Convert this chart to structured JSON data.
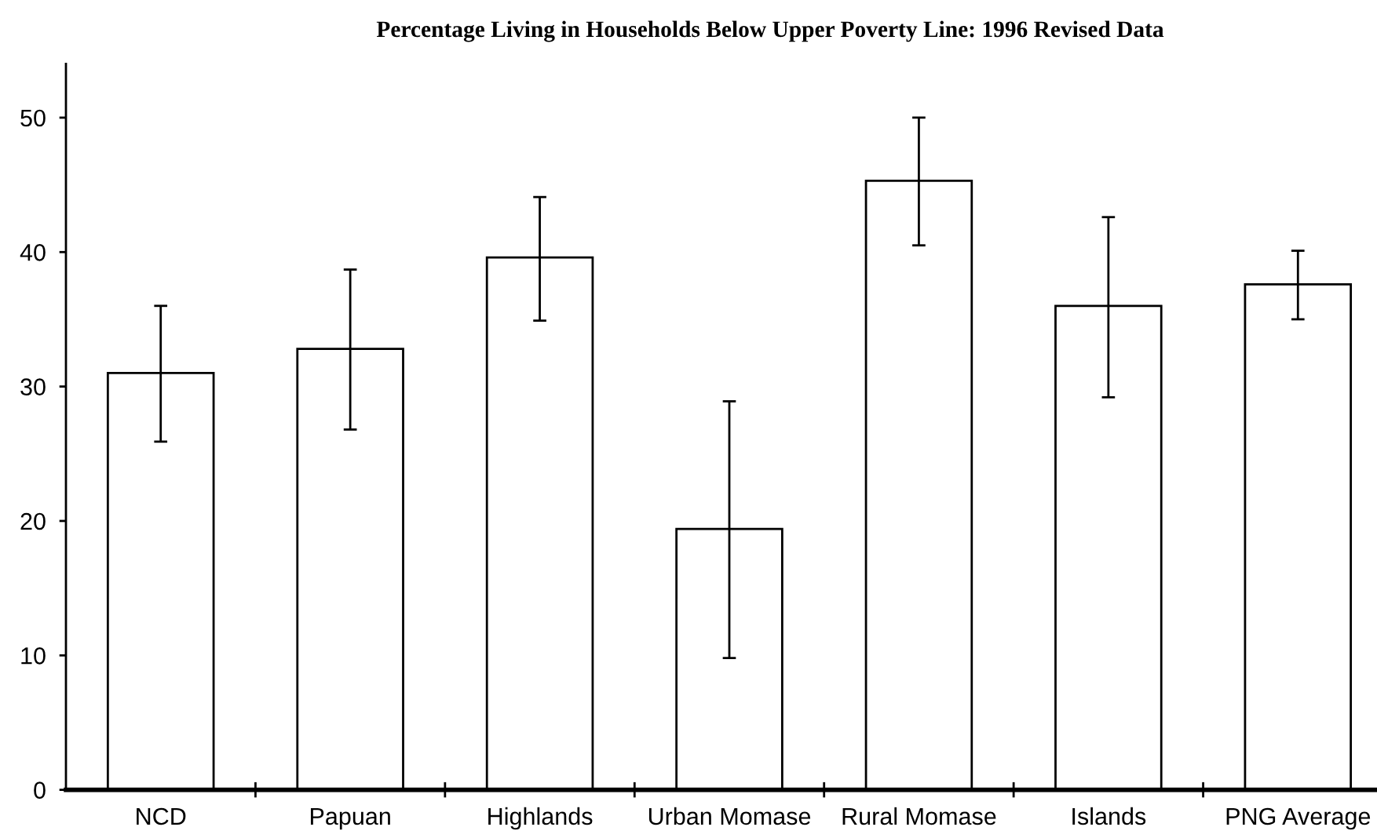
{
  "chart_data": {
    "type": "bar",
    "title": "Percentage Living in Households Below Upper Poverty Line: 1996 Revised Data",
    "categories": [
      "NCD",
      "Papuan",
      "Highlands",
      "Urban Momase",
      "Rural Momase",
      "Islands",
      "PNG Average"
    ],
    "values": [
      31.0,
      32.8,
      39.6,
      19.4,
      45.3,
      36.0,
      37.6
    ],
    "errors": [
      [
        25.9,
        36.0
      ],
      [
        26.8,
        38.7
      ],
      [
        34.9,
        44.1
      ],
      [
        9.8,
        28.9
      ],
      [
        40.5,
        50.0
      ],
      [
        29.2,
        42.6
      ],
      [
        35.0,
        40.1
      ]
    ],
    "color": "#ffffff",
    "ylim": [
      0,
      54
    ],
    "yticks": [
      0,
      10,
      20,
      30,
      40,
      50
    ],
    "grid": false
  }
}
